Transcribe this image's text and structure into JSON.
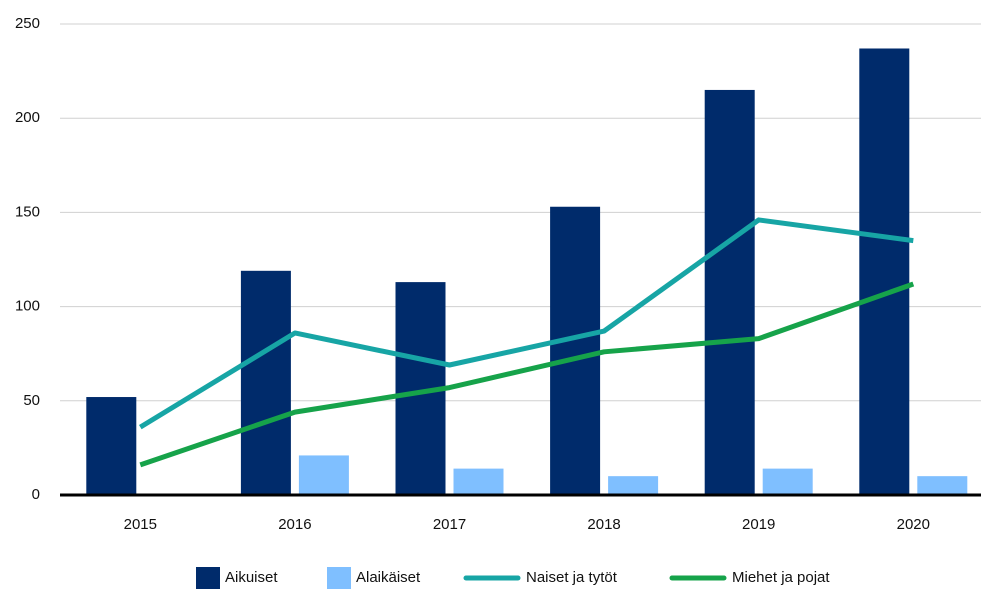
{
  "chart_data": {
    "type": "bar_line",
    "categories": [
      "2015",
      "2016",
      "2017",
      "2018",
      "2019",
      "2020"
    ],
    "series": [
      {
        "name": "Aikuiset",
        "type": "bar",
        "color": "#002b6b",
        "values": [
          52,
          119,
          113,
          153,
          215,
          237
        ]
      },
      {
        "name": "Alaikäiset",
        "type": "bar",
        "color": "#7fbfff",
        "values": [
          0,
          21,
          14,
          10,
          14,
          10
        ]
      },
      {
        "name": "Naiset ja tytöt",
        "type": "line",
        "color": "#17a5a5",
        "values": [
          36,
          86,
          69,
          87,
          146,
          135
        ]
      },
      {
        "name": "Miehet ja pojat",
        "type": "line",
        "color": "#16a34a",
        "values": [
          16,
          44,
          57,
          76,
          83,
          112
        ]
      }
    ],
    "ylim": [
      0,
      250
    ],
    "yticks": [
      0,
      50,
      100,
      150,
      200,
      250
    ],
    "grid": true,
    "legend": "bottom"
  }
}
